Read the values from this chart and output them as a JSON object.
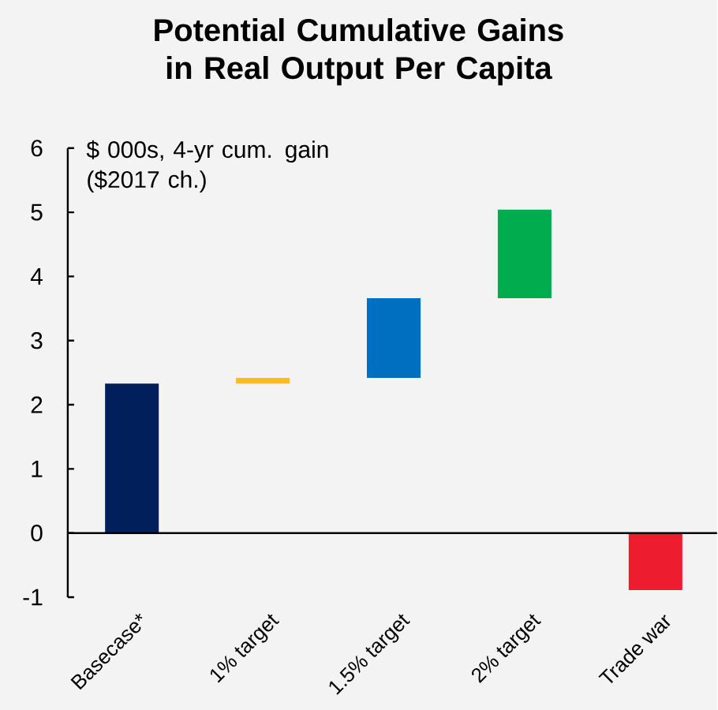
{
  "chart_data": {
    "type": "bar",
    "title": "Potential Cumulative Gains in Real Output Per Capita",
    "ylabel": "$ 000s, 4-yr cum. gain ($2017 ch.)",
    "categories": [
      "Basecase*",
      "1% target",
      "1.5% target",
      "2% target",
      "Trade war"
    ],
    "values": [
      2.33,
      0.09,
      1.24,
      1.38,
      -0.89
    ],
    "base": [
      0,
      2.33,
      2.42,
      3.66,
      0
    ],
    "colors": [
      "#001f5b",
      "#fdbd12",
      "#006fbf",
      "#00ac4e",
      "#ed1c2e"
    ],
    "ylim": [
      -1,
      6
    ],
    "yticks": [
      -1,
      0,
      1,
      2,
      3,
      4,
      5,
      6
    ]
  }
}
